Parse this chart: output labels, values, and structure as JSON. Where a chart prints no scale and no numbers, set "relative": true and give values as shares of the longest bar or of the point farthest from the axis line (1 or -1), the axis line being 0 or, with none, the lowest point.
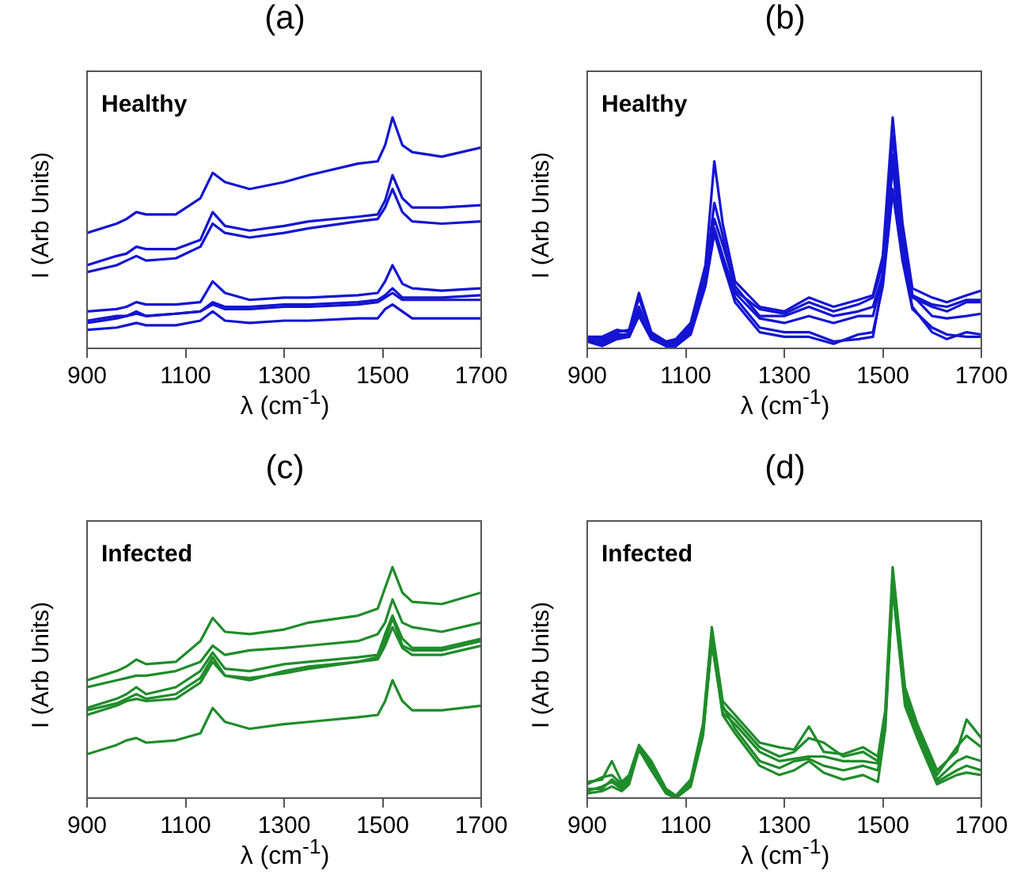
{
  "chart_data": [
    {
      "type": "line",
      "title": "(a)",
      "xlabel": "λ (cm$^{-1}$)",
      "ylabel": "I (Arb Units)",
      "annotations": [
        "Healthy"
      ],
      "relative": true,
      "grid": false,
      "marker": "none",
      "xlim": [
        900,
        1700
      ],
      "xticks": [
        900,
        1100,
        1300,
        1500,
        1700
      ],
      "x": [
        900,
        960,
        980,
        1000,
        1020,
        1080,
        1130,
        1155,
        1180,
        1230,
        1300,
        1350,
        1450,
        1490,
        1505,
        1520,
        1540,
        1560,
        1620,
        1700
      ],
      "series": [
        {
          "color": "#1414d2",
          "values": [
            0.5,
            0.54,
            0.56,
            0.59,
            0.58,
            0.58,
            0.65,
            0.76,
            0.72,
            0.69,
            0.72,
            0.75,
            0.8,
            0.81,
            0.88,
            1.0,
            0.88,
            0.85,
            0.83,
            0.87
          ]
        },
        {
          "color": "#1414d2",
          "values": [
            0.36,
            0.4,
            0.41,
            0.44,
            0.43,
            0.43,
            0.47,
            0.59,
            0.53,
            0.51,
            0.53,
            0.55,
            0.57,
            0.58,
            0.64,
            0.75,
            0.65,
            0.61,
            0.61,
            0.62
          ]
        },
        {
          "color": "#1414d2",
          "values": [
            0.33,
            0.36,
            0.38,
            0.4,
            0.38,
            0.39,
            0.44,
            0.54,
            0.5,
            0.48,
            0.5,
            0.52,
            0.55,
            0.56,
            0.61,
            0.69,
            0.59,
            0.55,
            0.54,
            0.55
          ]
        },
        {
          "color": "#1414d2",
          "values": [
            0.16,
            0.17,
            0.18,
            0.2,
            0.19,
            0.19,
            0.2,
            0.29,
            0.24,
            0.21,
            0.22,
            0.22,
            0.23,
            0.24,
            0.29,
            0.36,
            0.28,
            0.26,
            0.25,
            0.26
          ]
        },
        {
          "color": "#1414d2",
          "values": [
            0.12,
            0.14,
            0.14,
            0.16,
            0.14,
            0.15,
            0.16,
            0.2,
            0.18,
            0.18,
            0.19,
            0.19,
            0.2,
            0.21,
            0.23,
            0.26,
            0.22,
            0.22,
            0.22,
            0.23
          ]
        },
        {
          "color": "#1414d2",
          "values": [
            0.11,
            0.13,
            0.14,
            0.15,
            0.14,
            0.15,
            0.16,
            0.19,
            0.17,
            0.17,
            0.18,
            0.18,
            0.19,
            0.2,
            0.22,
            0.24,
            0.21,
            0.21,
            0.21,
            0.21
          ]
        },
        {
          "color": "#1414d2",
          "values": [
            0.08,
            0.09,
            0.1,
            0.11,
            0.1,
            0.1,
            0.12,
            0.16,
            0.12,
            0.11,
            0.12,
            0.12,
            0.13,
            0.13,
            0.17,
            0.19,
            0.16,
            0.13,
            0.13,
            0.13
          ]
        }
      ]
    },
    {
      "type": "line",
      "title": "(b)",
      "xlabel": "λ (cm$^{-1}$)",
      "ylabel": "I (Arb Units)",
      "annotations": [
        "Healthy"
      ],
      "relative": true,
      "grid": false,
      "marker": "none",
      "xlim": [
        900,
        1700
      ],
      "xticks": [
        900,
        1100,
        1300,
        1500,
        1700
      ],
      "x": [
        900,
        930,
        960,
        985,
        1005,
        1030,
        1060,
        1080,
        1110,
        1140,
        1158,
        1175,
        1200,
        1250,
        1300,
        1350,
        1400,
        1450,
        1480,
        1500,
        1520,
        1540,
        1560,
        1600,
        1630,
        1670,
        1700
      ],
      "series": [
        {
          "color": "#1414d2",
          "values": [
            0.05,
            0.04,
            0.07,
            0.08,
            0.24,
            0.07,
            0.03,
            0.04,
            0.11,
            0.36,
            0.81,
            0.54,
            0.29,
            0.18,
            0.16,
            0.22,
            0.18,
            0.21,
            0.23,
            0.4,
            1.0,
            0.54,
            0.26,
            0.22,
            0.2,
            0.23,
            0.25
          ]
        },
        {
          "color": "#1414d2",
          "values": [
            0.05,
            0.05,
            0.08,
            0.07,
            0.22,
            0.06,
            0.02,
            0.03,
            0.1,
            0.32,
            0.63,
            0.49,
            0.25,
            0.17,
            0.15,
            0.2,
            0.16,
            0.19,
            0.22,
            0.36,
            0.92,
            0.49,
            0.23,
            0.19,
            0.18,
            0.21,
            0.21
          ]
        },
        {
          "color": "#1414d2",
          "values": [
            0.04,
            0.03,
            0.06,
            0.06,
            0.18,
            0.05,
            0.02,
            0.02,
            0.09,
            0.31,
            0.56,
            0.45,
            0.27,
            0.14,
            0.14,
            0.18,
            0.14,
            0.16,
            0.18,
            0.32,
            0.84,
            0.45,
            0.23,
            0.14,
            0.13,
            0.14,
            0.15
          ]
        },
        {
          "color": "#1414d2",
          "values": [
            0.03,
            0.03,
            0.05,
            0.05,
            0.16,
            0.05,
            0.01,
            0.01,
            0.08,
            0.29,
            0.52,
            0.4,
            0.24,
            0.13,
            0.11,
            0.14,
            0.11,
            0.14,
            0.14,
            0.31,
            0.79,
            0.41,
            0.22,
            0.18,
            0.16,
            0.2,
            0.2
          ]
        },
        {
          "color": "#1414d2",
          "values": [
            0.04,
            0.02,
            0.05,
            0.05,
            0.15,
            0.05,
            0.01,
            0.01,
            0.07,
            0.28,
            0.5,
            0.38,
            0.22,
            0.09,
            0.07,
            0.07,
            0.03,
            0.04,
            0.05,
            0.29,
            0.69,
            0.4,
            0.18,
            0.07,
            0.04,
            0.07,
            0.06
          ]
        },
        {
          "color": "#1414d2",
          "values": [
            0.03,
            0.01,
            0.04,
            0.05,
            0.14,
            0.04,
            0.01,
            0.01,
            0.06,
            0.27,
            0.5,
            0.37,
            0.2,
            0.07,
            0.05,
            0.05,
            0.02,
            0.06,
            0.07,
            0.27,
            0.68,
            0.38,
            0.17,
            0.09,
            0.06,
            0.05,
            0.05
          ]
        }
      ]
    },
    {
      "type": "line",
      "title": "(c)",
      "xlabel": "λ (cm$^{-1}$)",
      "ylabel": "I (Arb Units)",
      "annotations": [
        "Infected"
      ],
      "relative": true,
      "grid": false,
      "marker": "none",
      "xlim": [
        900,
        1700
      ],
      "xticks": [
        900,
        1100,
        1300,
        1500,
        1700
      ],
      "x": [
        900,
        960,
        980,
        1000,
        1020,
        1080,
        1130,
        1155,
        1180,
        1230,
        1300,
        1350,
        1450,
        1490,
        1505,
        1520,
        1540,
        1560,
        1620,
        1700
      ],
      "series": [
        {
          "color": "#1f8c2a",
          "values": [
            0.51,
            0.55,
            0.57,
            0.6,
            0.58,
            0.59,
            0.68,
            0.78,
            0.72,
            0.71,
            0.73,
            0.76,
            0.79,
            0.82,
            0.91,
            1.0,
            0.89,
            0.85,
            0.84,
            0.89
          ]
        },
        {
          "color": "#1f8c2a",
          "values": [
            0.48,
            0.51,
            0.52,
            0.53,
            0.53,
            0.55,
            0.59,
            0.66,
            0.62,
            0.64,
            0.65,
            0.66,
            0.68,
            0.71,
            0.76,
            0.86,
            0.76,
            0.74,
            0.72,
            0.76
          ]
        },
        {
          "color": "#1f8c2a",
          "values": [
            0.39,
            0.43,
            0.45,
            0.48,
            0.45,
            0.48,
            0.55,
            0.63,
            0.56,
            0.55,
            0.58,
            0.59,
            0.61,
            0.62,
            0.71,
            0.79,
            0.69,
            0.65,
            0.65,
            0.69
          ]
        },
        {
          "color": "#1f8c2a",
          "values": [
            0.38,
            0.41,
            0.43,
            0.45,
            0.43,
            0.45,
            0.52,
            0.61,
            0.53,
            0.51,
            0.55,
            0.57,
            0.59,
            0.61,
            0.68,
            0.78,
            0.66,
            0.64,
            0.64,
            0.68
          ]
        },
        {
          "color": "#1f8c2a",
          "values": [
            0.36,
            0.4,
            0.42,
            0.43,
            0.42,
            0.43,
            0.5,
            0.59,
            0.53,
            0.52,
            0.54,
            0.56,
            0.59,
            0.6,
            0.66,
            0.74,
            0.65,
            0.62,
            0.62,
            0.66
          ]
        },
        {
          "color": "#1f8c2a",
          "values": [
            0.19,
            0.23,
            0.25,
            0.26,
            0.24,
            0.25,
            0.28,
            0.39,
            0.33,
            0.3,
            0.32,
            0.33,
            0.35,
            0.36,
            0.42,
            0.51,
            0.42,
            0.38,
            0.38,
            0.4
          ]
        }
      ]
    },
    {
      "type": "line",
      "title": "(d)",
      "xlabel": "λ (cm$^{-1}$)",
      "ylabel": "I (Arb Units)",
      "annotations": [
        "Infected"
      ],
      "relative": true,
      "grid": false,
      "marker": "none",
      "xlim": [
        900,
        1700
      ],
      "xticks": [
        900,
        1100,
        1300,
        1500,
        1700
      ],
      "x": [
        900,
        930,
        950,
        970,
        985,
        1005,
        1030,
        1060,
        1080,
        1110,
        1135,
        1153,
        1175,
        1200,
        1250,
        1290,
        1320,
        1350,
        1380,
        1420,
        1460,
        1490,
        1505,
        1520,
        1545,
        1570,
        1610,
        1650,
        1670,
        1700
      ],
      "series": [
        {
          "color": "#1f8c2a",
          "values": [
            0.07,
            0.08,
            0.16,
            0.07,
            0.1,
            0.23,
            0.16,
            0.04,
            0.01,
            0.08,
            0.32,
            0.74,
            0.42,
            0.36,
            0.24,
            0.22,
            0.21,
            0.31,
            0.2,
            0.19,
            0.22,
            0.18,
            0.38,
            1.0,
            0.48,
            0.32,
            0.12,
            0.2,
            0.34,
            0.26
          ]
        },
        {
          "color": "#1f8c2a",
          "values": [
            0.06,
            0.09,
            0.1,
            0.06,
            0.09,
            0.22,
            0.14,
            0.03,
            0.0,
            0.07,
            0.3,
            0.7,
            0.39,
            0.34,
            0.22,
            0.18,
            0.2,
            0.26,
            0.24,
            0.18,
            0.2,
            0.16,
            0.36,
            0.95,
            0.46,
            0.3,
            0.1,
            0.22,
            0.27,
            0.22
          ]
        },
        {
          "color": "#1f8c2a",
          "values": [
            0.03,
            0.05,
            0.07,
            0.04,
            0.08,
            0.21,
            0.13,
            0.02,
            0.0,
            0.06,
            0.28,
            0.67,
            0.37,
            0.32,
            0.2,
            0.16,
            0.17,
            0.18,
            0.18,
            0.16,
            0.16,
            0.15,
            0.34,
            0.92,
            0.44,
            0.28,
            0.08,
            0.16,
            0.18,
            0.16
          ]
        },
        {
          "color": "#1f8c2a",
          "values": [
            0.04,
            0.04,
            0.08,
            0.05,
            0.07,
            0.22,
            0.15,
            0.03,
            0.0,
            0.06,
            0.29,
            0.68,
            0.4,
            0.3,
            0.16,
            0.13,
            0.16,
            0.17,
            0.14,
            0.12,
            0.14,
            0.12,
            0.32,
            0.93,
            0.42,
            0.27,
            0.07,
            0.12,
            0.14,
            0.12
          ]
        },
        {
          "color": "#1f8c2a",
          "values": [
            0.02,
            0.03,
            0.05,
            0.03,
            0.06,
            0.21,
            0.12,
            0.02,
            0.0,
            0.05,
            0.27,
            0.69,
            0.36,
            0.28,
            0.14,
            0.1,
            0.12,
            0.16,
            0.11,
            0.08,
            0.1,
            0.07,
            0.3,
            0.91,
            0.4,
            0.26,
            0.06,
            0.1,
            0.11,
            0.1
          ]
        }
      ]
    }
  ]
}
